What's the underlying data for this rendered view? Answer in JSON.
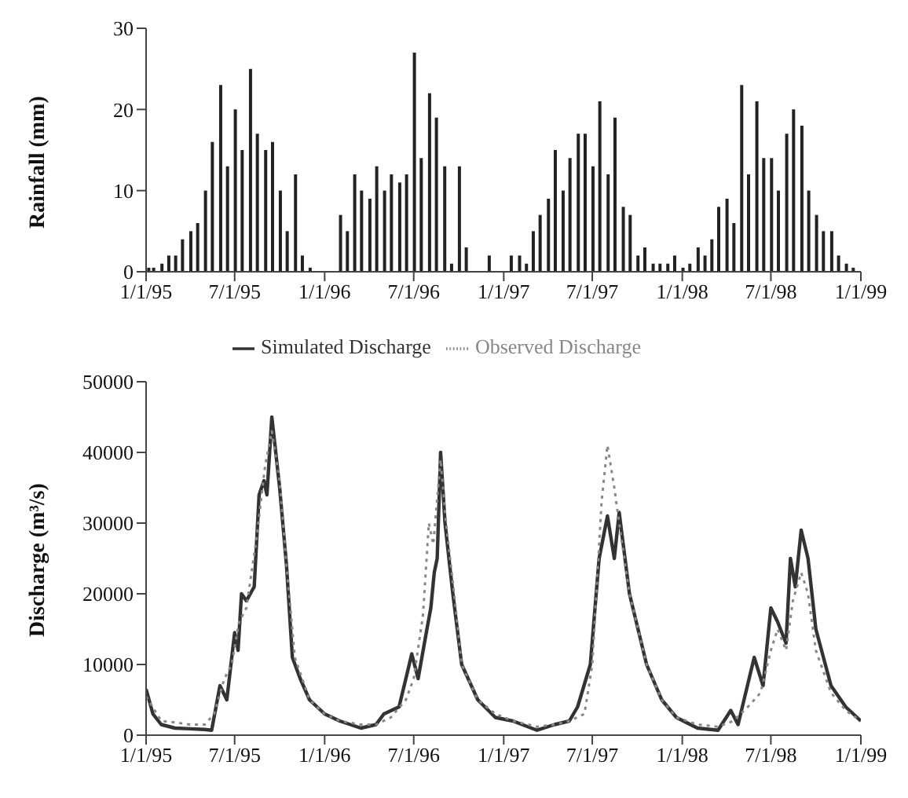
{
  "chart_data": [
    {
      "type": "bar",
      "ylabel": "Rainfall (mm)",
      "color": "#222222",
      "x": [
        "1995-01-05",
        "1995-01-15",
        "1995-02-01",
        "1995-02-15",
        "1995-03-01",
        "1995-03-15",
        "1995-04-01",
        "1995-04-15",
        "1995-05-01",
        "1995-05-15",
        "1995-06-01",
        "1995-06-15",
        "1995-07-01",
        "1995-07-15",
        "1995-08-01",
        "1995-08-15",
        "1995-09-01",
        "1995-09-15",
        "1995-10-01",
        "1995-10-15",
        "1995-11-01",
        "1995-11-15",
        "1995-12-01",
        "1995-12-15",
        "1996-01-01",
        "1996-01-15",
        "1996-02-01",
        "1996-02-15",
        "1996-03-01",
        "1996-03-15",
        "1996-04-01",
        "1996-04-15",
        "1996-05-01",
        "1996-05-15",
        "1996-06-01",
        "1996-06-15",
        "1996-07-01",
        "1996-07-15",
        "1996-08-01",
        "1996-08-15",
        "1996-09-01",
        "1996-09-15",
        "1996-10-01",
        "1996-10-15",
        "1996-11-01",
        "1996-11-15",
        "1996-12-01",
        "1996-12-15",
        "1997-01-01",
        "1997-01-15",
        "1997-02-01",
        "1997-02-15",
        "1997-03-01",
        "1997-03-15",
        "1997-04-01",
        "1997-04-15",
        "1997-05-01",
        "1997-05-15",
        "1997-06-01",
        "1997-06-15",
        "1997-07-01",
        "1997-07-15",
        "1997-08-01",
        "1997-08-15",
        "1997-09-01",
        "1997-09-15",
        "1997-10-01",
        "1997-10-15",
        "1997-11-01",
        "1997-11-15",
        "1997-12-01",
        "1997-12-15",
        "1998-01-01",
        "1998-01-15",
        "1998-02-01",
        "1998-02-15",
        "1998-03-01",
        "1998-03-15",
        "1998-04-01",
        "1998-04-15",
        "1998-05-01",
        "1998-05-15",
        "1998-06-01",
        "1998-06-15",
        "1998-07-01",
        "1998-07-15",
        "1998-08-01",
        "1998-08-15",
        "1998-09-01",
        "1998-09-15",
        "1998-10-01",
        "1998-10-15",
        "1998-11-01",
        "1998-11-15",
        "1998-12-01",
        "1998-12-15"
      ],
      "values": [
        0.5,
        0.5,
        1,
        2,
        2,
        4,
        5,
        6,
        10,
        16,
        23,
        13,
        20,
        15,
        25,
        17,
        15,
        16,
        10,
        5,
        12,
        2,
        0.5,
        0,
        0,
        0,
        7,
        5,
        12,
        10,
        9,
        13,
        10,
        12,
        11,
        12,
        27,
        14,
        22,
        19,
        13,
        1,
        13,
        3,
        0,
        0,
        2,
        0,
        0,
        2,
        2,
        1,
        5,
        7,
        9,
        15,
        10,
        14,
        17,
        17,
        13,
        21,
        12,
        19,
        8,
        7,
        2,
        3,
        1,
        1,
        1,
        2,
        0.5,
        1,
        3,
        2,
        4,
        8,
        9,
        6,
        23,
        12,
        21,
        14,
        14,
        10,
        17,
        20,
        18,
        10,
        7,
        5,
        5,
        2,
        1,
        0.5
      ],
      "xlim": [
        "1995-01-01",
        "1999-01-01"
      ],
      "xticks": [
        {
          "value": "1995-01-01",
          "label": "1/1/95"
        },
        {
          "value": "1995-07-01",
          "label": "7/1/95"
        },
        {
          "value": "1996-01-01",
          "label": "1/1/96"
        },
        {
          "value": "1996-07-01",
          "label": "7/1/96"
        },
        {
          "value": "1997-01-01",
          "label": "1/1/97"
        },
        {
          "value": "1997-07-01",
          "label": "7/1/97"
        },
        {
          "value": "1998-01-01",
          "label": "1/1/98"
        },
        {
          "value": "1998-07-01",
          "label": "7/1/98"
        },
        {
          "value": "1999-01-01",
          "label": "1/1/99"
        }
      ],
      "ylim": [
        0,
        30
      ],
      "yticks": [
        0,
        10,
        20,
        30
      ]
    },
    {
      "type": "line",
      "ylabel": "Discharge (m³/s)",
      "legend": "top",
      "marker": "none",
      "series": [
        {
          "name": "Simulated Discharge",
          "color": "#333333",
          "line_style": "solid",
          "x": [
            "1995-01-01",
            "1995-01-15",
            "1995-02-01",
            "1995-03-01",
            "1995-04-01",
            "1995-05-01",
            "1995-05-15",
            "1995-06-01",
            "1995-06-15",
            "1995-07-01",
            "1995-07-08",
            "1995-07-15",
            "1995-07-25",
            "1995-08-10",
            "1995-08-20",
            "1995-08-30",
            "1995-09-05",
            "1995-09-15",
            "1995-10-01",
            "1995-10-15",
            "1995-10-27",
            "1995-11-12",
            "1995-12-01",
            "1996-01-01",
            "1996-02-01",
            "1996-03-15",
            "1996-04-15",
            "1996-05-01",
            "1996-06-01",
            "1996-06-15",
            "1996-06-27",
            "1996-07-10",
            "1996-07-28",
            "1996-08-05",
            "1996-08-12",
            "1996-08-18",
            "1996-08-25",
            "1996-09-03",
            "1996-09-19",
            "1996-10-07",
            "1996-11-09",
            "1996-12-15",
            "1997-01-20",
            "1997-03-10",
            "1997-04-15",
            "1997-05-15",
            "1997-06-01",
            "1997-06-27",
            "1997-07-15",
            "1997-08-01",
            "1997-08-15",
            "1997-08-25",
            "1997-09-15",
            "1997-10-20",
            "1997-11-20",
            "1997-12-20",
            "1998-02-01",
            "1998-03-15",
            "1998-04-10",
            "1998-04-25",
            "1998-05-28",
            "1998-06-15",
            "1998-07-01",
            "1998-07-15",
            "1998-08-01",
            "1998-08-10",
            "1998-08-20",
            "1998-09-01",
            "1998-09-15",
            "1998-10-01",
            "1998-11-01",
            "1998-12-01",
            "1999-01-01"
          ],
          "values": [
            6500,
            3000,
            1500,
            1000,
            900,
            800,
            700,
            7000,
            5000,
            14500,
            12000,
            20000,
            19000,
            21000,
            34000,
            36000,
            34000,
            45000,
            35000,
            24000,
            11000,
            8000,
            5000,
            3000,
            2000,
            1000,
            1500,
            3000,
            4000,
            8000,
            11500,
            8000,
            15000,
            18000,
            23000,
            25000,
            40000,
            30000,
            20000,
            10000,
            5000,
            2500,
            2000,
            700,
            1500,
            2000,
            4000,
            10000,
            25000,
            31000,
            25000,
            31500,
            20000,
            10000,
            5000,
            2500,
            1000,
            700,
            3500,
            1500,
            11000,
            7000,
            18000,
            16000,
            13000,
            25000,
            21000,
            29000,
            25000,
            15000,
            7000,
            4000,
            2000
          ]
        },
        {
          "name": "Observed Discharge",
          "color": "#888888",
          "line_style": "dotted",
          "x": [
            "1995-01-01",
            "1995-02-01",
            "1995-03-01",
            "1995-04-01",
            "1995-05-01",
            "1995-05-20",
            "1995-06-10",
            "1995-06-25",
            "1995-07-10",
            "1995-07-25",
            "1995-08-15",
            "1995-09-01",
            "1995-09-15",
            "1995-10-01",
            "1995-10-15",
            "1995-11-01",
            "1995-12-01",
            "1996-01-01",
            "1996-02-01",
            "1996-03-15",
            "1996-04-15",
            "1996-05-15",
            "1996-06-15",
            "1996-07-01",
            "1996-07-20",
            "1996-08-01",
            "1996-08-10",
            "1996-08-25",
            "1996-09-05",
            "1996-09-20",
            "1996-10-07",
            "1996-11-09",
            "1996-12-15",
            "1997-01-20",
            "1997-03-10",
            "1997-04-15",
            "1997-05-15",
            "1997-06-15",
            "1997-07-01",
            "1997-07-20",
            "1997-08-01",
            "1997-08-15",
            "1997-08-25",
            "1997-09-15",
            "1997-10-20",
            "1997-11-20",
            "1997-12-20",
            "1998-02-01",
            "1998-03-15",
            "1998-04-15",
            "1998-05-15",
            "1998-06-10",
            "1998-07-01",
            "1998-07-15",
            "1998-08-01",
            "1998-08-15",
            "1998-09-01",
            "1998-09-15",
            "1998-10-01",
            "1998-11-01",
            "1998-12-01",
            "1999-01-01"
          ],
          "values": [
            5500,
            2000,
            1800,
            1500,
            1500,
            3000,
            8000,
            10000,
            16000,
            18000,
            28000,
            38000,
            43000,
            36000,
            24000,
            11000,
            5000,
            3000,
            2000,
            1500,
            1500,
            2500,
            5000,
            8000,
            17000,
            30000,
            27000,
            39000,
            30000,
            21000,
            10000,
            5000,
            3000,
            2000,
            1200,
            1500,
            2000,
            3000,
            10000,
            33000,
            41000,
            35000,
            30000,
            20000,
            10000,
            5000,
            2500,
            1500,
            1200,
            2000,
            4000,
            6000,
            12000,
            15000,
            12000,
            19000,
            23000,
            20000,
            12000,
            6000,
            3500,
            2000
          ]
        }
      ],
      "xlim": [
        "1995-01-01",
        "1999-01-01"
      ],
      "xticks": [
        {
          "value": "1995-01-01",
          "label": "1/1/95"
        },
        {
          "value": "1995-07-01",
          "label": "7/1/95"
        },
        {
          "value": "1996-01-01",
          "label": "1/1/96"
        },
        {
          "value": "1996-07-01",
          "label": "7/1/96"
        },
        {
          "value": "1997-01-01",
          "label": "1/1/97"
        },
        {
          "value": "1997-07-01",
          "label": "7/1/97"
        },
        {
          "value": "1998-01-01",
          "label": "1/1/98"
        },
        {
          "value": "1998-07-01",
          "label": "7/1/98"
        },
        {
          "value": "1999-01-01",
          "label": "1/1/99"
        }
      ],
      "ylim": [
        0,
        50000
      ],
      "yticks": [
        0,
        10000,
        20000,
        30000,
        40000,
        50000
      ]
    }
  ]
}
